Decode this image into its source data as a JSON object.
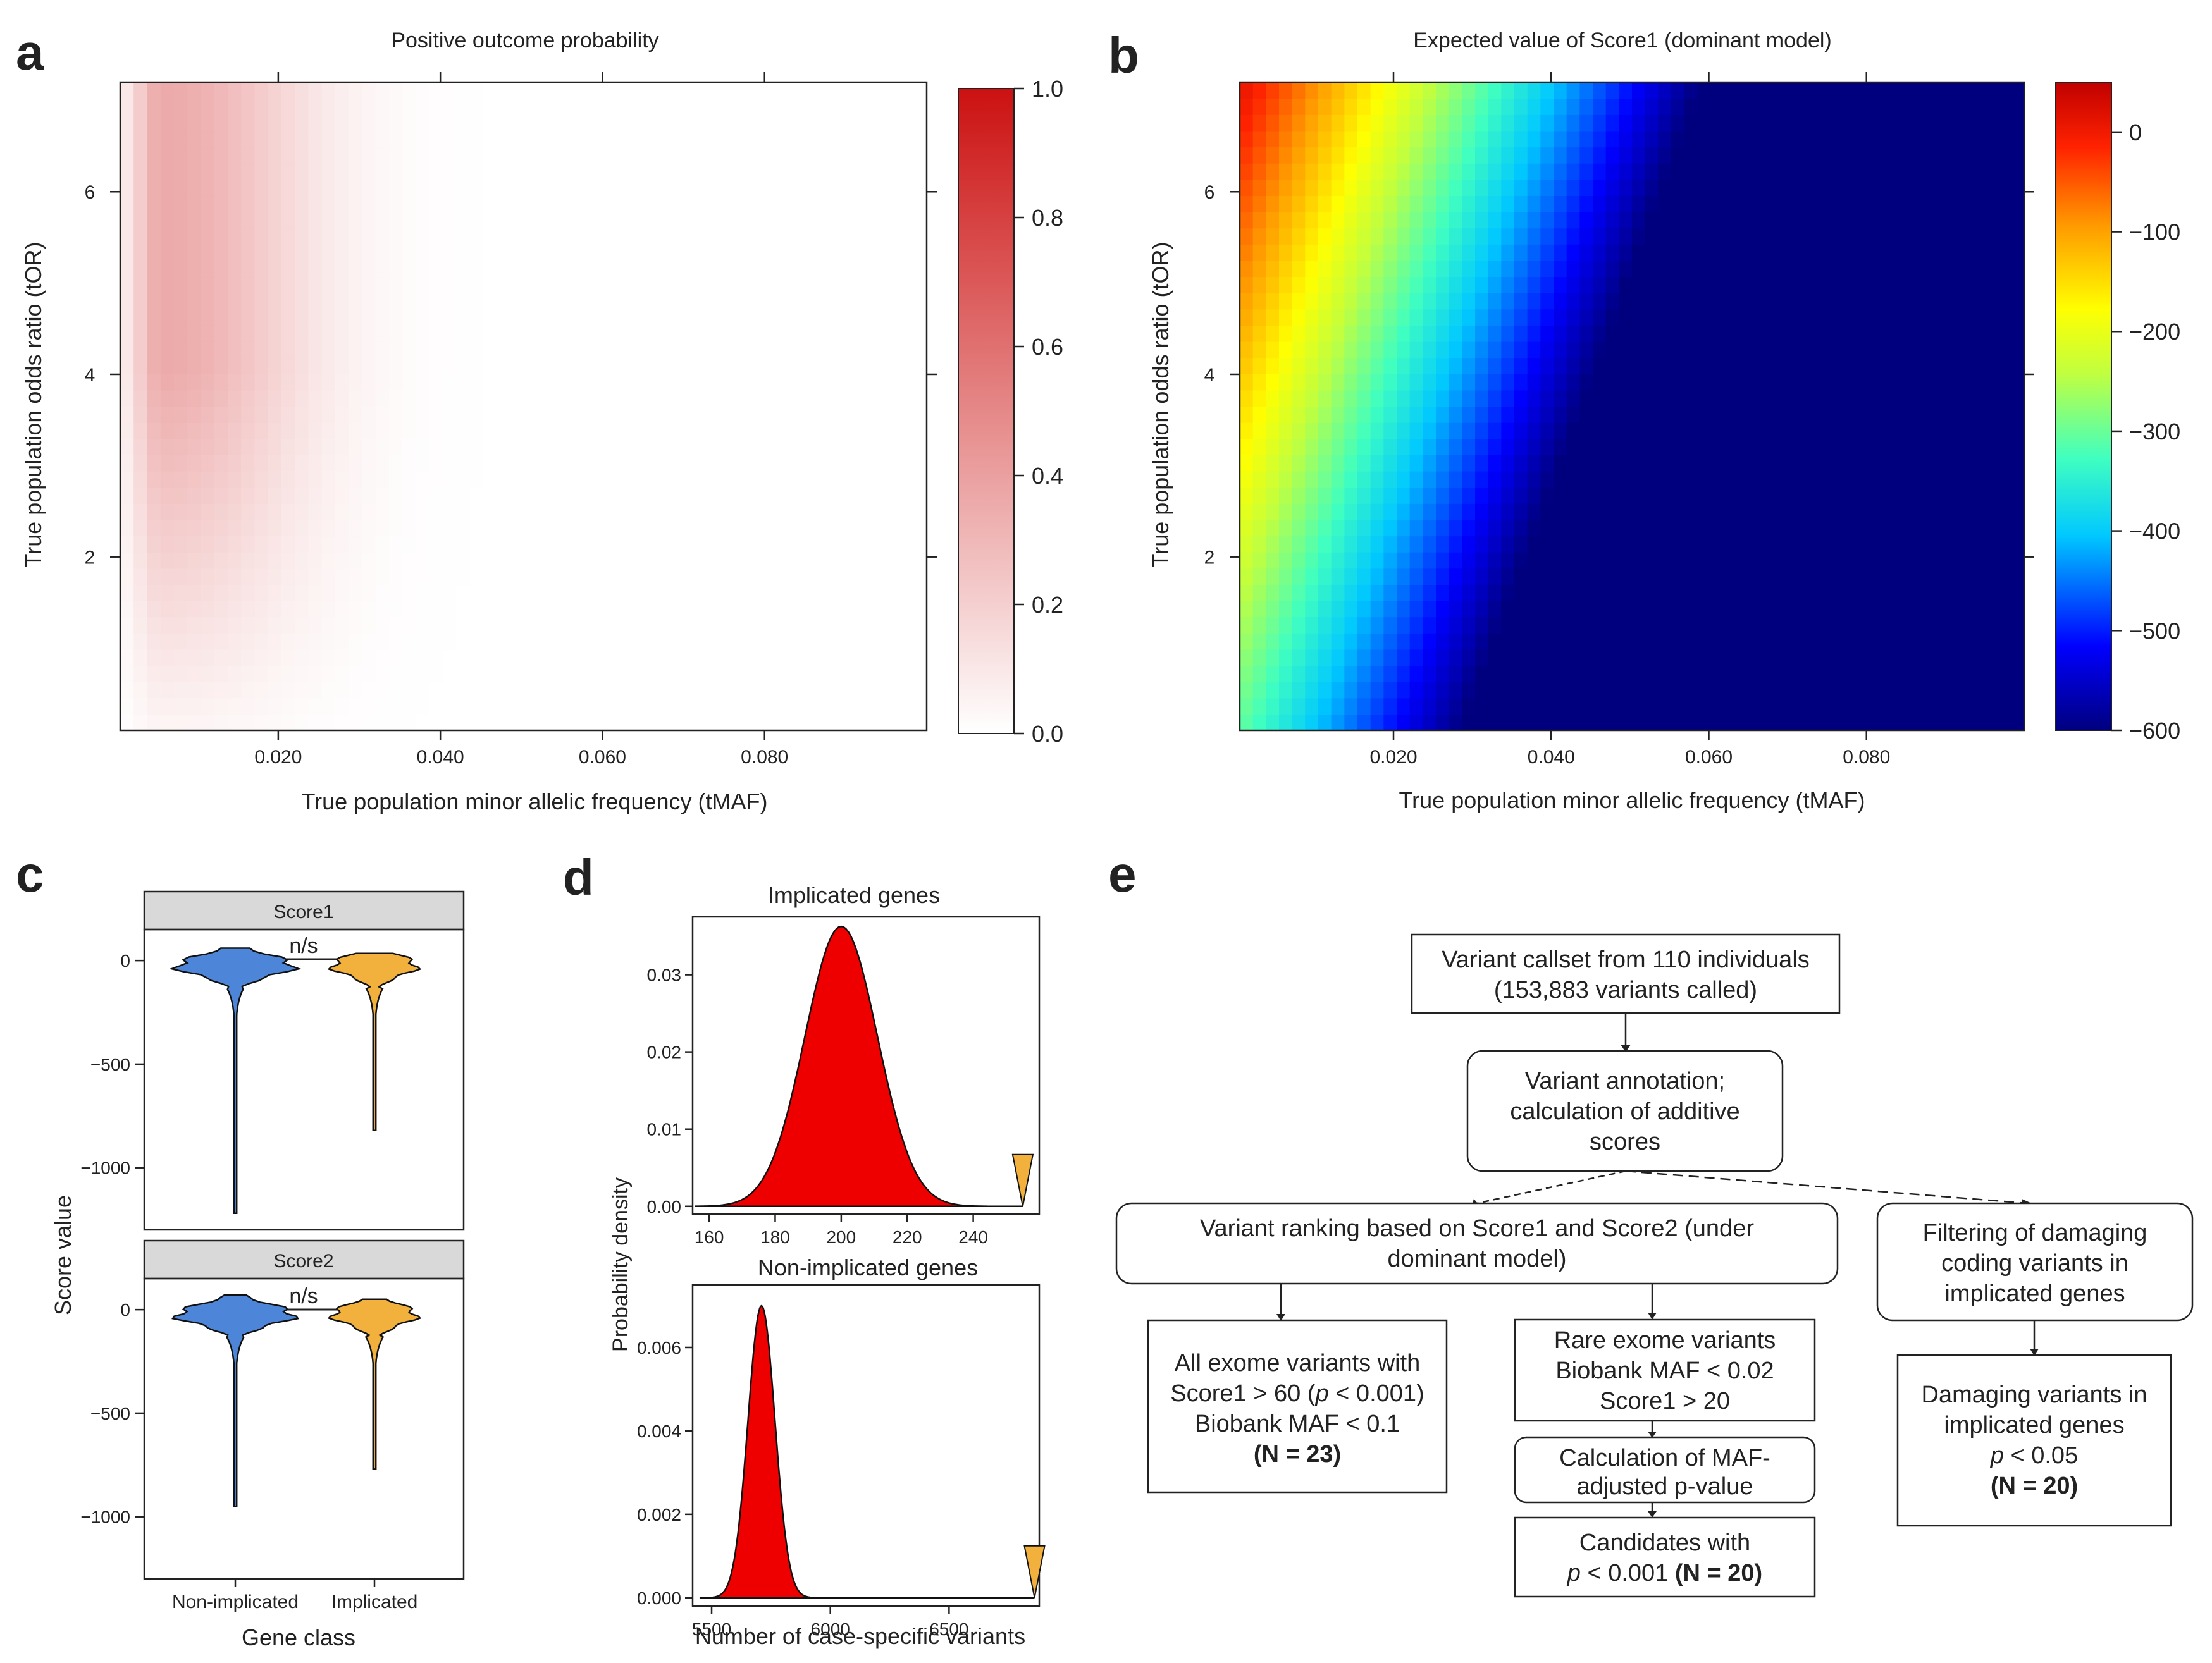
{
  "panels": {
    "a": "a",
    "b": "b",
    "c": "c",
    "d": "d",
    "e": "e"
  },
  "chart_data": [
    {
      "id": "a",
      "type": "heatmap",
      "title": "Positive outcome probability",
      "xlabel": "True population minor allelic frequency (tMAF)",
      "ylabel": "True population odds ratio (tOR)",
      "xlim": [
        0.0005,
        0.1
      ],
      "ylim": [
        0.1,
        7.2
      ],
      "xticks": [
        0.02,
        0.04,
        0.06,
        0.08
      ],
      "xtick_labels": [
        "0.020",
        "0.040",
        "0.060",
        "0.080"
      ],
      "yticks": [
        2,
        4,
        6
      ],
      "ytick_labels": [
        "2",
        "4",
        "6"
      ],
      "colorbar": {
        "min": 0,
        "max": 1,
        "ticks": [
          0,
          0.2,
          0.4,
          0.6,
          0.8,
          1.0
        ],
        "tick_labels": [
          "0.0",
          "0.2",
          "0.4",
          "0.6",
          "0.8",
          "1.0"
        ],
        "low_color": "#ffffff",
        "high_color": "#cc1111"
      },
      "summary": "Probability peaks (~0.35) at tMAF ≈ 0.005–0.01 and high tOR, fades to ~0 by tMAF ≈ 0.045."
    },
    {
      "id": "b",
      "type": "heatmap",
      "title": "Expected value of Score1 (dominant model)",
      "xlabel": "True population minor allelic frequency (tMAF)",
      "ylabel": "True population odds ratio (tOR)",
      "xlim": [
        0.0005,
        0.1
      ],
      "ylim": [
        0.1,
        7.2
      ],
      "xticks": [
        0.02,
        0.04,
        0.06,
        0.08
      ],
      "xtick_labels": [
        "0.020",
        "0.040",
        "0.060",
        "0.080"
      ],
      "yticks": [
        2,
        4,
        6
      ],
      "ytick_labels": [
        "2",
        "4",
        "6"
      ],
      "colorbar": {
        "min": -600,
        "max": 50,
        "ticks": [
          0,
          -100,
          -200,
          -300,
          -400,
          -500,
          -600
        ],
        "tick_labels": [
          "0",
          "−100",
          "−200",
          "−300",
          "−400",
          "−500",
          "−600"
        ],
        "palette": "jet"
      },
      "summary": "Value near 0 at low tMAF / high tOR, decreasing diagonally to about −600 at tMAF ≈ 0.1, tOR ≈ 0.1."
    },
    {
      "id": "c",
      "type": "violin",
      "ylabel": "Score value",
      "xlabel": "Gene class",
      "categories": [
        "Non-implicated",
        "Implicated"
      ],
      "colors": [
        "#4d86d8",
        "#f2b13d"
      ],
      "facets": [
        {
          "label": "Score1",
          "ylim": [
            -1300,
            150
          ],
          "yticks": [
            0,
            -500,
            -1000
          ],
          "ytick_labels": [
            "0",
            "−500",
            "−1000"
          ],
          "min_values": [
            -1220,
            -820
          ],
          "max_values": [
            60,
            35
          ],
          "significance": "n/s"
        },
        {
          "label": "Score2",
          "ylim": [
            -1300,
            150
          ],
          "yticks": [
            0,
            -500,
            -1000
          ],
          "ytick_labels": [
            "0",
            "−500",
            "−1000"
          ],
          "min_values": [
            -950,
            -770
          ],
          "max_values": [
            70,
            50
          ],
          "significance": "n/s"
        }
      ]
    },
    {
      "id": "d",
      "type": "area",
      "ylabel": "Probability density",
      "xlabel": "Number of case-specific variants",
      "subplots": [
        {
          "title": "Implicated genes",
          "xlim": [
            155,
            260
          ],
          "ylim": [
            -0.001,
            0.0375
          ],
          "xticks": [
            160,
            180,
            200,
            220,
            240
          ],
          "yticks": [
            0,
            0.01,
            0.02,
            0.03
          ],
          "ytick_labels": [
            "0.00",
            "0.01",
            "0.02",
            "0.03"
          ],
          "mean": 200,
          "sd": 11,
          "observed": 255,
          "fill": "#ee0000",
          "marker_color": "#f2b13d"
        },
        {
          "title": "Non-implicated genes",
          "xlim": [
            5420,
            6880
          ],
          "ylim": [
            -0.0002,
            0.0075
          ],
          "xticks": [
            5500,
            6000,
            6500
          ],
          "yticks": [
            0,
            0.002,
            0.004,
            0.006
          ],
          "ytick_labels": [
            "0.000",
            "0.002",
            "0.004",
            "0.006"
          ],
          "mean": 5710,
          "sd": 57,
          "observed": 6860,
          "fill": "#ee0000",
          "marker_color": "#f2b13d"
        }
      ]
    }
  ],
  "flowchart": {
    "node1": {
      "line1": "Variant callset from 110 individuals",
      "line2": "(153,883 variants called)"
    },
    "node2": {
      "line1": "Variant annotation;",
      "line2": "calculation of additive",
      "line3": "scores"
    },
    "node3": {
      "line1": "Variant ranking based on Score1 and Score2 (under",
      "line2": "dominant model)"
    },
    "node4": {
      "line1": "Filtering of damaging",
      "line2": "coding variants in",
      "line3": "implicated genes"
    },
    "node5": {
      "line1": "All exome variants with",
      "line2a": "Score1 > 60 (",
      "p": "p",
      "line2b": " < 0.001)",
      "line3": "Biobank MAF < 0.1",
      "line4": "(N = 23)"
    },
    "node6": {
      "line1": "Rare exome variants",
      "line2": "Biobank MAF < 0.02",
      "line3": "Score1 > 20"
    },
    "node7": {
      "line1": "Calculation of MAF-",
      "line2": "adjusted p-value"
    },
    "node8": {
      "line1": "Candidates with",
      "p": "p",
      "line2a": " < 0.001 ",
      "line2b": "(N = 20)"
    },
    "node9": {
      "line1": "Damaging variants in",
      "line2": "implicated genes",
      "p": "p",
      "line3": " < 0.05",
      "line4": "(N = 20)"
    }
  }
}
